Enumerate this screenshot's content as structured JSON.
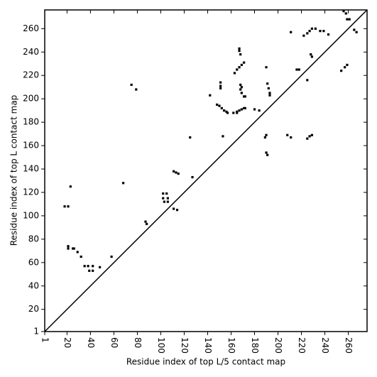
{
  "chart_data": {
    "type": "scatter",
    "xlabel": "Residue index of top L/5 contact map",
    "ylabel": "Residue index of top L contact map",
    "x": [
      18,
      21,
      23,
      21,
      21,
      25,
      26,
      29,
      32,
      35,
      38,
      42,
      39,
      42,
      48,
      58,
      68,
      75,
      79,
      87,
      88,
      102,
      105,
      102,
      106,
      103,
      106,
      111,
      114,
      111,
      113,
      115,
      125,
      127,
      142,
      148,
      150,
      152,
      154,
      156,
      157,
      151,
      151,
      151,
      153,
      162,
      165,
      163,
      165,
      167,
      169,
      171,
      167,
      167,
      168,
      168,
      169,
      168,
      169,
      171,
      172,
      165,
      167,
      169,
      171,
      172,
      180,
      184,
      190,
      191,
      192,
      193,
      193,
      189,
      190,
      190,
      191,
      208,
      211,
      211,
      216,
      218,
      225,
      222,
      225,
      227,
      229,
      232,
      228,
      229,
      225,
      227,
      229,
      236,
      239,
      243,
      256,
      258,
      259,
      261,
      265,
      267,
      254,
      257,
      259
    ],
    "values": [
      108,
      108,
      125,
      74,
      72,
      72,
      72,
      69,
      65,
      57,
      57,
      57,
      53,
      53,
      56,
      65,
      128,
      212,
      208,
      95,
      93,
      119,
      119,
      115,
      115,
      112,
      112,
      106,
      105,
      138,
      137,
      136,
      167,
      133,
      203,
      195,
      194,
      192,
      190,
      189,
      188,
      211,
      214,
      209,
      168,
      188,
      188,
      222,
      225,
      227,
      229,
      231,
      243,
      241,
      238,
      212,
      210,
      208,
      205,
      202,
      202,
      189,
      190,
      191,
      192,
      192,
      191,
      190,
      227,
      213,
      209,
      205,
      203,
      167,
      169,
      154,
      152,
      169,
      167,
      257,
      225,
      225,
      216,
      254,
      256,
      258,
      260,
      260,
      238,
      236,
      166,
      168,
      169,
      258,
      258,
      255,
      275,
      273,
      268,
      268,
      259,
      257,
      224,
      227,
      229
    ],
    "color": "#000000",
    "diagonal": true,
    "xlim": [
      1,
      276
    ],
    "ylim": [
      1,
      276
    ],
    "xticks": [
      1,
      20,
      40,
      60,
      80,
      100,
      120,
      140,
      160,
      180,
      200,
      220,
      240,
      260
    ],
    "yticks": [
      1,
      20,
      40,
      60,
      80,
      100,
      120,
      140,
      160,
      180,
      200,
      220,
      240,
      260
    ]
  }
}
